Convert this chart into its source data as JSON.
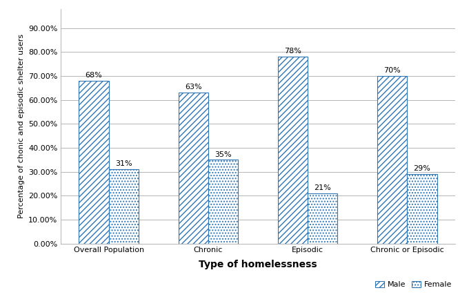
{
  "categories": [
    "Overall Population",
    "Chronic",
    "Episodic",
    "Chronic or Episodic"
  ],
  "male_values": [
    0.68,
    0.63,
    0.78,
    0.7
  ],
  "female_values": [
    0.31,
    0.35,
    0.21,
    0.29
  ],
  "male_labels": [
    "68%",
    "63%",
    "78%",
    "70%"
  ],
  "female_labels": [
    "31%",
    "35%",
    "21%",
    "29%"
  ],
  "bar_color": "#2E75B6",
  "xlabel": "Type of homelessness",
  "ylabel": "Percentage of chonic and episodic shelter users",
  "ylim": [
    0,
    0.98
  ],
  "yticks": [
    0.0,
    0.1,
    0.2,
    0.3,
    0.4,
    0.5,
    0.6,
    0.7,
    0.8,
    0.9
  ],
  "ytick_labels": [
    "0.00%",
    "10.00%",
    "20.00%",
    "30.00%",
    "40.00%",
    "50.00%",
    "60.00%",
    "70.00%",
    "80.00%",
    "90.00%"
  ],
  "legend_male": "Male",
  "legend_female": "Female",
  "bar_width": 0.3,
  "xlabel_fontsize": 10,
  "ylabel_fontsize": 8,
  "tick_fontsize": 8,
  "label_fontsize": 8,
  "grid_color": "#AAAAAA"
}
